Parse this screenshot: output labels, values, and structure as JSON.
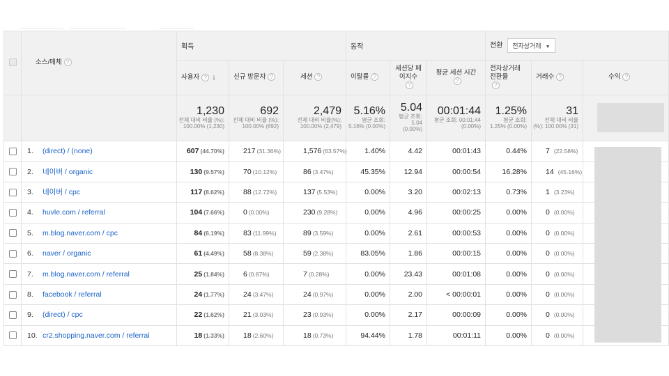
{
  "header": {
    "source_medium": "소스/매체",
    "group_acquisition": "획득",
    "group_behavior": "동작",
    "group_conversion": "전환",
    "conversion_select": "전자상거래",
    "col_users": "사용자",
    "col_new_users": "신규 방문자",
    "col_sessions": "세션",
    "col_bounce": "이탈률",
    "col_pages_session": "세션당 페이지수",
    "col_avg_duration": "평균 세션 시간",
    "col_ecom_rate": "전자상거래 전환율",
    "col_transactions": "거래수",
    "col_revenue": "수익"
  },
  "icons": {
    "help": "question-circle-icon",
    "sort": "arrow-down-icon",
    "dropdown": "caret-down-icon"
  },
  "colors": {
    "link": "#1a63c7",
    "header_bg": "#f1f1f1",
    "redacted": "#dcdcdc"
  },
  "totals": {
    "users": "1,230",
    "users_sub": "전체 대비 비율 (%): 100.00% (1,230)",
    "new_users": "692",
    "new_users_sub": "전체 대비 비율 (%): 100.00% (692)",
    "sessions": "2,479",
    "sessions_sub": "전체 대비 비율(%): 100.00% (2,479)",
    "bounce": "5.16%",
    "bounce_sub": "평균 조회: 5.16% (0.00%)",
    "pages": "5.04",
    "pages_sub": "평균 조회: 5.04 (0.00%)",
    "duration": "00:01:44",
    "duration_sub": "평균 조회: 00:01:44 (0.00%)",
    "ecom": "1.25%",
    "ecom_sub": "평균 조회: 1.25% (0.00%)",
    "transactions": "31",
    "transactions_sub": "전체 대비 비율 (%): 100.00% (31)"
  },
  "rows": [
    {
      "idx": "1.",
      "src": "(direct) / (none)",
      "users": "607",
      "users_pct": "(44.70%)",
      "new": "217",
      "new_pct": "(31.36%)",
      "sess": "1,576",
      "sess_pct": "(63.57%)",
      "bounce": "1.40%",
      "pages": "4.42",
      "dur": "00:01:43",
      "ecom": "0.44%",
      "tx": "7",
      "tx_pct": "(22.58%)"
    },
    {
      "idx": "2.",
      "src": "네이버 / organic",
      "users": "130",
      "users_pct": "(9.57%)",
      "new": "70",
      "new_pct": "(10.12%)",
      "sess": "86",
      "sess_pct": "(3.47%)",
      "bounce": "45.35%",
      "pages": "12.94",
      "dur": "00:00:54",
      "ecom": "16.28%",
      "tx": "14",
      "tx_pct": "(45.16%)"
    },
    {
      "idx": "3.",
      "src": "네이버 / cpc",
      "users": "117",
      "users_pct": "(8.62%)",
      "new": "88",
      "new_pct": "(12.72%)",
      "sess": "137",
      "sess_pct": "(5.53%)",
      "bounce": "0.00%",
      "pages": "3.20",
      "dur": "00:02:13",
      "ecom": "0.73%",
      "tx": "1",
      "tx_pct": "(3.23%)"
    },
    {
      "idx": "4.",
      "src": "huvle.com / referral",
      "users": "104",
      "users_pct": "(7.66%)",
      "new": "0",
      "new_pct": "(0.00%)",
      "sess": "230",
      "sess_pct": "(9.28%)",
      "bounce": "0.00%",
      "pages": "4.96",
      "dur": "00:00:25",
      "ecom": "0.00%",
      "tx": "0",
      "tx_pct": "(0.00%)"
    },
    {
      "idx": "5.",
      "src": "m.blog.naver.com / cpc",
      "users": "84",
      "users_pct": "(6.19%)",
      "new": "83",
      "new_pct": "(11.99%)",
      "sess": "89",
      "sess_pct": "(3.59%)",
      "bounce": "0.00%",
      "pages": "2.61",
      "dur": "00:00:53",
      "ecom": "0.00%",
      "tx": "0",
      "tx_pct": "(0.00%)"
    },
    {
      "idx": "6.",
      "src": "naver / organic",
      "users": "61",
      "users_pct": "(4.49%)",
      "new": "58",
      "new_pct": "(8.38%)",
      "sess": "59",
      "sess_pct": "(2.38%)",
      "bounce": "83.05%",
      "pages": "1.86",
      "dur": "00:00:15",
      "ecom": "0.00%",
      "tx": "0",
      "tx_pct": "(0.00%)"
    },
    {
      "idx": "7.",
      "src": "m.blog.naver.com / referral",
      "users": "25",
      "users_pct": "(1.84%)",
      "new": "6",
      "new_pct": "(0.87%)",
      "sess": "7",
      "sess_pct": "(0.28%)",
      "bounce": "0.00%",
      "pages": "23.43",
      "dur": "00:01:08",
      "ecom": "0.00%",
      "tx": "0",
      "tx_pct": "(0.00%)"
    },
    {
      "idx": "8.",
      "src": "facebook / referral",
      "users": "24",
      "users_pct": "(1.77%)",
      "new": "24",
      "new_pct": "(3.47%)",
      "sess": "24",
      "sess_pct": "(0.97%)",
      "bounce": "0.00%",
      "pages": "2.00",
      "dur": "< 00:00:01",
      "ecom": "0.00%",
      "tx": "0",
      "tx_pct": "(0.00%)"
    },
    {
      "idx": "9.",
      "src": "(direct) / cpc",
      "users": "22",
      "users_pct": "(1.62%)",
      "new": "21",
      "new_pct": "(3.03%)",
      "sess": "23",
      "sess_pct": "(0.93%)",
      "bounce": "0.00%",
      "pages": "2.17",
      "dur": "00:00:09",
      "ecom": "0.00%",
      "tx": "0",
      "tx_pct": "(0.00%)"
    },
    {
      "idx": "10.",
      "src": "cr2.shopping.naver.com / referral",
      "users": "18",
      "users_pct": "(1.33%)",
      "new": "18",
      "new_pct": "(2.60%)",
      "sess": "18",
      "sess_pct": "(0.73%)",
      "bounce": "94.44%",
      "pages": "1.78",
      "dur": "00:01:11",
      "ecom": "0.00%",
      "tx": "0",
      "tx_pct": "(0.00%)"
    }
  ]
}
